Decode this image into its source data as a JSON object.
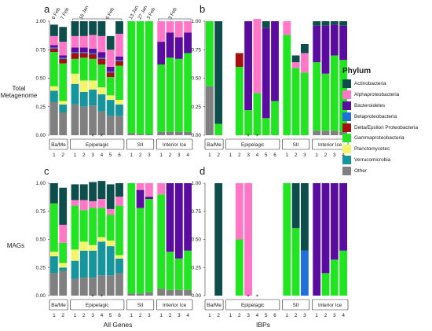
{
  "legend": {
    "title": "Phylum",
    "entries": [
      {
        "label": "Actinobacteria",
        "color": "#0d4d4b"
      },
      {
        "label": "Alphaproteobacteria",
        "color": "#ff77c6"
      },
      {
        "label": "Bacteroidetes",
        "color": "#5a0c9e"
      },
      {
        "label": "Betaproteobacteria",
        "color": "#1f70d8"
      },
      {
        "label": "Delta/Epsilon Proteobacteria",
        "color": "#a50f0f"
      },
      {
        "label": "Gammaproteobacteria",
        "color": "#22e422"
      },
      {
        "label": "Planctomycetes",
        "color": "#f4f46a"
      },
      {
        "label": "Verrucomicrobia",
        "color": "#16959c"
      },
      {
        "label": "Other",
        "color": "#808080"
      }
    ]
  },
  "row_labels": {
    "top_line1": "Total",
    "top_line2": "Metagenome",
    "bottom": "MAGs"
  },
  "x_titles": {
    "left": "All Genes",
    "right": "IBPs"
  },
  "chart_data": {
    "type": "bar",
    "stacked": true,
    "categories": [
      "Actinobacteria",
      "Alphaproteobacteria",
      "Bacteroidetes",
      "Betaproteobacteria",
      "Delta/Epsilon Proteobacteria",
      "Gammaproteobacteria",
      "Planctomycetes",
      "Verrucomicrobia",
      "Other"
    ],
    "ylim": [
      0,
      1
    ],
    "yticks": [
      "0.00",
      "0.25",
      "0.50",
      "0.75",
      "1.00"
    ],
    "groups": [
      {
        "label": "Ba/Me",
        "samples": [
          "1",
          "2"
        ]
      },
      {
        "label": "Epipelagic",
        "samples": [
          "1",
          "2",
          "3",
          "4",
          "5",
          "6"
        ]
      },
      {
        "label": "SII",
        "samples": [
          "1",
          "2",
          "3"
        ]
      },
      {
        "label": "Interior Ice",
        "samples": [
          "1",
          "2",
          "3",
          "4"
        ]
      }
    ],
    "date_labels": [
      "6 Feb",
      "7 Feb",
      "16 Jan",
      "6 Feb",
      "13 Jan",
      "27 Jan",
      "3 Feb",
      "3 Feb"
    ],
    "panels": [
      {
        "label": "a",
        "stars": [
          3,
          4
        ],
        "bars": [
          [
            0.1,
            0.08,
            0.02,
            0.01,
            0.03,
            0.3,
            0.04,
            0.1,
            0.29
          ],
          [
            0.13,
            0.12,
            0.02,
            0.01,
            0.04,
            0.33,
            0.03,
            0.07,
            0.2
          ],
          [
            0.13,
            0.1,
            0.04,
            0.01,
            0.05,
            0.13,
            0.09,
            0.18,
            0.27
          ],
          [
            0.13,
            0.1,
            0.04,
            0.01,
            0.04,
            0.2,
            0.1,
            0.13,
            0.25
          ],
          [
            0.12,
            0.12,
            0.04,
            0.01,
            0.04,
            0.19,
            0.08,
            0.14,
            0.26
          ],
          [
            0.13,
            0.14,
            0.05,
            0.01,
            0.05,
            0.2,
            0.06,
            0.15,
            0.21
          ],
          [
            0.12,
            0.15,
            0.04,
            0.01,
            0.04,
            0.16,
            0.04,
            0.14,
            0.17
          ],
          [
            0.11,
            0.2,
            0.03,
            0.01,
            0.04,
            0.3,
            0.04,
            0.1,
            0.17
          ],
          [
            0.0,
            0.0,
            0.0,
            0.0,
            0.0,
            0.98,
            0.0,
            0.0,
            0.02
          ],
          [
            0.0,
            0.0,
            0.0,
            0.0,
            0.0,
            0.99,
            0.0,
            0.0,
            0.01
          ],
          [
            0.0,
            0.0,
            0.0,
            0.0,
            0.0,
            0.99,
            0.0,
            0.0,
            0.01
          ],
          [
            0.0,
            0.18,
            0.2,
            0.0,
            0.0,
            0.59,
            0.0,
            0.0,
            0.03
          ],
          [
            0.0,
            0.1,
            0.22,
            0.0,
            0.0,
            0.65,
            0.0,
            0.0,
            0.03
          ],
          [
            0.0,
            0.14,
            0.19,
            0.0,
            0.0,
            0.64,
            0.0,
            0.0,
            0.03
          ],
          [
            0.0,
            0.1,
            0.18,
            0.0,
            0.0,
            0.69,
            0.0,
            0.0,
            0.03
          ]
        ]
      },
      {
        "label": "b",
        "stars": [
          3,
          4
        ],
        "bars": [
          [
            0.0,
            0.0,
            0.0,
            0.0,
            0.0,
            0.57,
            0.0,
            0.0,
            0.43
          ],
          [
            0.9,
            0.0,
            0.0,
            0.0,
            0.0,
            0.1,
            0.0,
            0.0,
            0.0
          ],
          [
            0.0,
            0.0,
            0.0,
            0.0,
            0.0,
            0.0,
            0.0,
            0.0,
            0.0
          ],
          [
            0.0,
            0.0,
            0.0,
            0.0,
            0.12,
            0.6,
            0.0,
            0.0,
            0.0
          ],
          [
            0.0,
            0.0,
            0.78,
            0.0,
            0.0,
            0.22,
            0.0,
            0.0,
            0.0
          ],
          [
            0.0,
            0.65,
            0.0,
            0.0,
            0.0,
            0.37,
            0.0,
            0.0,
            0.0
          ],
          [
            0.06,
            0.0,
            0.79,
            0.0,
            0.0,
            0.15,
            0.0,
            0.0,
            0.0
          ],
          [
            0.0,
            0.0,
            0.7,
            0.0,
            0.0,
            0.3,
            0.0,
            0.0,
            0.0
          ],
          [
            0.0,
            0.12,
            0.0,
            0.0,
            0.0,
            0.88,
            0.0,
            0.0,
            0.0
          ],
          [
            0.06,
            0.05,
            0.0,
            0.0,
            0.0,
            0.59,
            0.0,
            0.0,
            0.0
          ],
          [
            0.08,
            0.17,
            0.0,
            0.0,
            0.0,
            0.55,
            0.0,
            0.0,
            0.0
          ],
          [
            0.04,
            0.0,
            0.32,
            0.0,
            0.0,
            0.6,
            0.0,
            0.0,
            0.04
          ],
          [
            0.04,
            0.0,
            0.42,
            0.0,
            0.0,
            0.5,
            0.0,
            0.0,
            0.04
          ],
          [
            0.03,
            0.0,
            0.27,
            0.0,
            0.0,
            0.66,
            0.0,
            0.0,
            0.04
          ],
          [
            0.04,
            0.0,
            0.3,
            0.0,
            0.0,
            0.63,
            0.0,
            0.0,
            0.03
          ]
        ]
      },
      {
        "label": "c",
        "stars": [
          3,
          4
        ],
        "bars": [
          [
            0.18,
            0.0,
            0.0,
            0.0,
            0.0,
            0.43,
            0.04,
            0.15,
            0.2
          ],
          [
            0.33,
            0.16,
            0.0,
            0.0,
            0.0,
            0.18,
            0.04,
            0.03,
            0.22
          ],
          [
            0.14,
            0.05,
            0.0,
            0.0,
            0.0,
            0.39,
            0.1,
            0.16,
            0.15
          ],
          [
            0.14,
            0.09,
            0.0,
            0.0,
            0.0,
            0.28,
            0.08,
            0.24,
            0.16
          ],
          [
            0.17,
            0.06,
            0.0,
            0.0,
            0.0,
            0.33,
            0.05,
            0.24,
            0.16
          ],
          [
            0.16,
            0.08,
            0.0,
            0.0,
            0.0,
            0.26,
            0.04,
            0.3,
            0.18
          ],
          [
            0.22,
            0.05,
            0.0,
            0.0,
            0.0,
            0.23,
            0.05,
            0.26,
            0.18
          ],
          [
            0.12,
            0.08,
            0.0,
            0.0,
            0.0,
            0.44,
            0.03,
            0.13,
            0.2
          ],
          [
            0.0,
            0.0,
            0.0,
            0.0,
            0.0,
            0.98,
            0.0,
            0.0,
            0.02
          ],
          [
            0.0,
            0.06,
            0.16,
            0.0,
            0.0,
            0.76,
            0.0,
            0.0,
            0.02
          ],
          [
            0.0,
            0.12,
            0.02,
            0.0,
            0.0,
            0.83,
            0.0,
            0.0,
            0.03
          ],
          [
            0.0,
            0.1,
            0.0,
            0.0,
            0.0,
            0.84,
            0.0,
            0.0,
            0.06
          ],
          [
            0.0,
            0.0,
            0.61,
            0.0,
            0.0,
            0.34,
            0.0,
            0.0,
            0.05
          ],
          [
            0.0,
            0.0,
            0.67,
            0.0,
            0.0,
            0.28,
            0.0,
            0.0,
            0.05
          ],
          [
            0.0,
            0.0,
            0.6,
            0.0,
            0.0,
            0.35,
            0.0,
            0.0,
            0.05
          ]
        ]
      },
      {
        "label": "d",
        "stars": [
          3,
          4
        ],
        "bars": [
          [
            0.0,
            0.0,
            0.0,
            0.0,
            0.0,
            0.0,
            0.0,
            0.0,
            0.0
          ],
          [
            1.0,
            0.0,
            0.0,
            0.0,
            0.0,
            0.0,
            0.0,
            0.0,
            0.0
          ],
          [
            0.0,
            0.0,
            0.0,
            0.0,
            0.0,
            0.0,
            0.0,
            0.0,
            0.0
          ],
          [
            0.0,
            0.5,
            0.0,
            0.0,
            0.0,
            0.5,
            0.0,
            0.0,
            0.0
          ],
          [
            0.0,
            1.0,
            0.0,
            0.0,
            0.0,
            0.0,
            0.0,
            0.0,
            0.0
          ],
          [
            0.0,
            0.0,
            0.0,
            0.0,
            0.0,
            0.0,
            0.0,
            0.0,
            0.0
          ],
          [
            0.0,
            0.0,
            0.0,
            0.0,
            0.0,
            0.0,
            0.0,
            0.0,
            0.0
          ],
          [
            0.0,
            0.0,
            0.0,
            0.0,
            0.0,
            0.0,
            0.0,
            0.0,
            0.0
          ],
          [
            0.0,
            0.0,
            0.0,
            0.0,
            0.0,
            1.0,
            0.0,
            0.0,
            0.0
          ],
          [
            0.4,
            0.0,
            0.0,
            0.0,
            0.0,
            0.6,
            0.0,
            0.0,
            0.0
          ],
          [
            0.6,
            0.0,
            0.0,
            0.4,
            0.0,
            0.0,
            0.0,
            0.0,
            0.0
          ],
          [
            0.0,
            0.0,
            1.0,
            0.0,
            0.0,
            0.0,
            0.0,
            0.0,
            0.0
          ],
          [
            0.0,
            0.0,
            0.8,
            0.0,
            0.0,
            0.2,
            0.0,
            0.0,
            0.0
          ],
          [
            0.0,
            0.0,
            0.68,
            0.0,
            0.0,
            0.32,
            0.0,
            0.0,
            0.0
          ],
          [
            0.0,
            0.0,
            0.6,
            0.0,
            0.0,
            0.4,
            0.0,
            0.0,
            0.0
          ]
        ]
      }
    ]
  }
}
